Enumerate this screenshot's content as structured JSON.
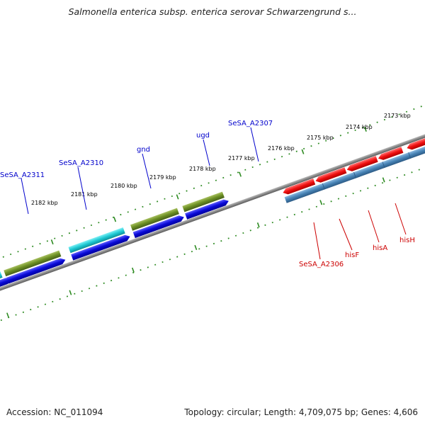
{
  "title": "Salmonella enterica subsp. enterica serovar Schwarzengrund s...",
  "footer": {
    "accession": "Accession: NC_011094",
    "summary": "Topology: circular; Length: 4,709,075 bp; Genes: 4,606"
  },
  "colors": {
    "background": "#ffffff",
    "backbone": "#888888",
    "tick_green": "#2e8b22",
    "forward_label": "#0000cc",
    "reverse_label": "#cc0000",
    "blue": "#0a0ad8",
    "cyan": "#1ec8d2",
    "olive": "#6b8e23",
    "red": "#f01010",
    "steelblue": "#4682b4"
  },
  "scale_ticks": [
    {
      "label": "2182 kbp"
    },
    {
      "label": "2181 kbp"
    },
    {
      "label": "2180 kbp"
    },
    {
      "label": "2179 kbp"
    },
    {
      "label": "2178 kbp"
    },
    {
      "label": "2177 kbp"
    },
    {
      "label": "2176 kbp"
    },
    {
      "label": "2175 kbp"
    },
    {
      "label": "2174 kbp"
    },
    {
      "label": "2173 kbp"
    }
  ],
  "forward_labels": [
    {
      "text": "SeSA_A2311"
    },
    {
      "text": "SeSA_A2310"
    },
    {
      "text": "gnd"
    },
    {
      "text": "ugd"
    },
    {
      "text": "SeSA_A2307"
    }
  ],
  "reverse_labels": [
    {
      "text": "SeSA_A2306"
    },
    {
      "text": "hisF"
    },
    {
      "text": "hisA"
    },
    {
      "text": "hisH"
    }
  ]
}
